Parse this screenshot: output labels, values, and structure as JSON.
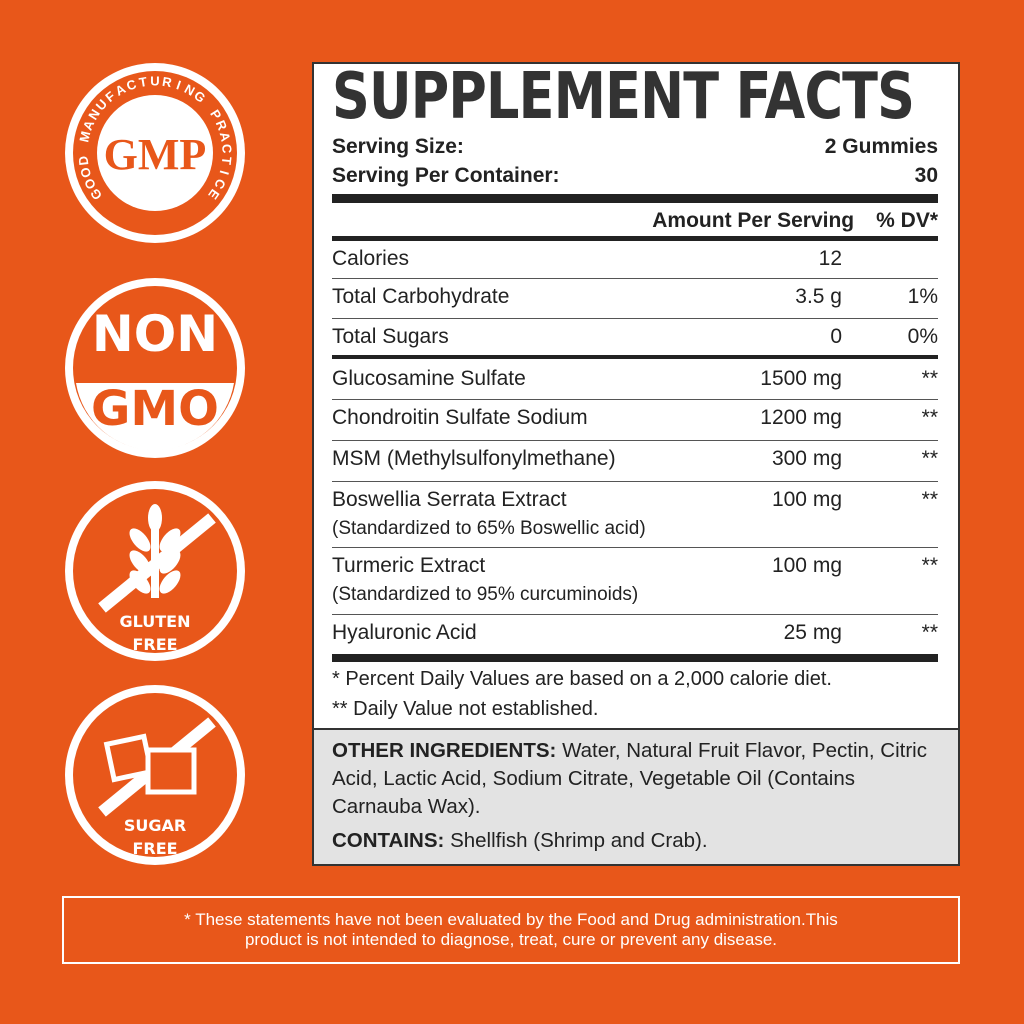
{
  "badges": [
    {
      "name": "gmp",
      "main": "GMP",
      "ring": "GOOD MANUFACTURING PRACTICE"
    },
    {
      "name": "non-gmo",
      "line1": "NON",
      "line2": "GMO"
    },
    {
      "name": "gluten-free",
      "line1": "GLUTEN",
      "line2": "FREE"
    },
    {
      "name": "sugar-free",
      "line1": "SUGAR",
      "line2": "FREE"
    }
  ],
  "panel": {
    "title": "SUPPLEMENT FACTS",
    "serving_size_label": "Serving Size:",
    "serving_size": "2 Gummies",
    "servings_label": "Serving Per Container:",
    "servings": "30",
    "amount_header": "Amount Per Serving",
    "dv_header": "% DV*",
    "rows": [
      {
        "name": "Calories",
        "amount": "12",
        "dv": ""
      },
      {
        "name": "Total Carbohydrate",
        "amount": "3.5 g",
        "dv": "1%"
      },
      {
        "name": "Total Sugars",
        "amount": "0",
        "dv": "0%"
      },
      {
        "name": "Glucosamine Sulfate",
        "amount": "1500 mg",
        "dv": "**"
      },
      {
        "name": "Chondroitin Sulfate Sodium",
        "amount": "1200 mg",
        "dv": "**"
      },
      {
        "name": "MSM (Methylsulfonylmethane)",
        "amount": "300 mg",
        "dv": "**"
      },
      {
        "name": "Boswellia Serrata Extract",
        "sub": "(Standardized to 65% Boswellic acid)",
        "amount": "100 mg",
        "dv": "**"
      },
      {
        "name": "Turmeric Extract",
        "sub": "(Standardized to 95% curcuminoids)",
        "amount": "100 mg",
        "dv": "**"
      },
      {
        "name": "Hyaluronic Acid",
        "amount": "25 mg",
        "dv": "**"
      }
    ],
    "footnote1": "* Percent Daily Values are based on a 2,000 calorie diet.",
    "footnote2": "** Daily Value not established.",
    "other_label": "OTHER INGREDIENTS:",
    "other_text": " Water, Natural Fruit Flavor, Pectin, Citric Acid, Lactic Acid, Sodium Citrate, Vegetable Oil (Contains Carnauba Wax).",
    "contains_label": "CONTAINS:",
    "contains_text": " Shellfish (Shrimp and Crab)."
  },
  "disclaimer": {
    "line1": "* These statements have not been evaluated by the Food and Drug administration.This",
    "line2": "product is not intended to diagnose, treat, cure or prevent any disease."
  },
  "colors": {
    "background": "#E8571A",
    "panel": "#FFFFFF",
    "other_bg": "#E3E3E3"
  }
}
